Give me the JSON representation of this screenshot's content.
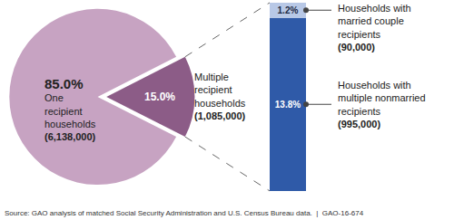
{
  "chart_data": {
    "type": "pie",
    "categories": [
      "One recipient households",
      "Multiple recipient households"
    ],
    "values": [
      85.0,
      15.0
    ],
    "value_labels": [
      "85.0%",
      "15.0%"
    ],
    "count_labels": [
      "(6,138,000)",
      "(1,085,000)"
    ],
    "colors": [
      "#c7a3c2",
      "#8c5c87"
    ],
    "data_labels": true,
    "breakdown": {
      "type": "bar",
      "stacked": true,
      "categories": [
        "Households with multiple nonmarried recipients",
        "Households with married couple recipients"
      ],
      "values": [
        13.8,
        1.2
      ],
      "value_labels": [
        "13.8%",
        "1.2%"
      ],
      "count_labels": [
        "(995,000)",
        "(90,000)"
      ],
      "colors": [
        "#2f5aa8",
        "#b8c8e6"
      ],
      "ylim": [
        0,
        15
      ],
      "tick_labels": false,
      "data_labels": true
    },
    "source": "Source: GAO analysis of matched Social Security Administration and U.S. Census Bureau data.  |  GAO-16-674"
  }
}
